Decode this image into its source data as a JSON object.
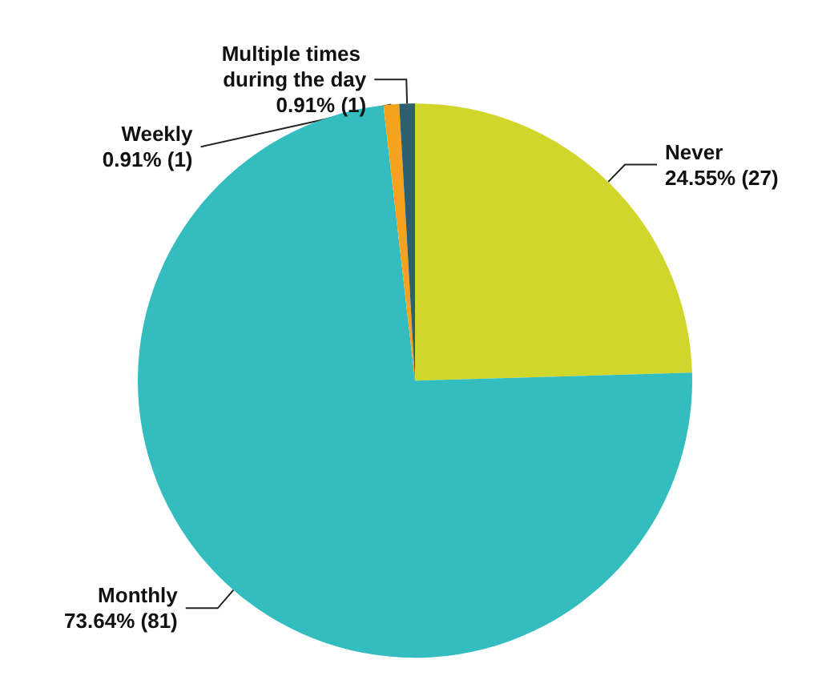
{
  "chart_data": {
    "type": "pie",
    "categories": [
      "Never",
      "Monthly",
      "Weekly",
      "Multiple times during the day"
    ],
    "values": [
      27,
      81,
      1,
      1
    ],
    "value_labels": [
      "24.55% (27)",
      "73.64% (81)",
      "0.91% (1)",
      "0.91% (1)"
    ],
    "colors": [
      "#d0d62a",
      "#33bdbf",
      "#f5a31f",
      "#2d5f6e"
    ],
    "legend": false
  }
}
